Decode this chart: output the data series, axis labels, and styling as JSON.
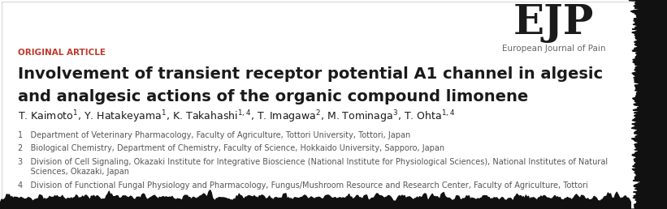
{
  "background_color": "#ffffff",
  "journal_logo": "EJP",
  "journal_name": "European Journal of Pain",
  "article_type": "ORIGINAL ARTICLE",
  "title_line1": "Involvement of transient receptor potential A1 channel in algesic",
  "title_line2": "and analgesic actions of the organic compound limonene",
  "authors_plain": "T. Kaimoto",
  "affil1": "1   Department of Veterinary Pharmacology, Faculty of Agriculture, Tottori University, Tottori, Japan",
  "affil2": "2   Biological Chemistry, Department of Chemistry, Faculty of Science, Hokkaido University, Sapporo, Japan",
  "affil3": "3   Division of Cell Signaling, Okazaki Institute for Integrative Bioscience (National Institute for Physiological Sciences), National Institutes of Natural",
  "affil3b": "     Sciences, Okazaki, Japan",
  "affil4": "4   Division of Functional Fungal Physiology and Pharmacology, Fungus/Mushroom Resource and Research Center, Faculty of Agriculture, Tottori",
  "title_color": "#1a1a1a",
  "article_type_color": "#c0392b",
  "affil_color": "#555555",
  "author_color": "#1a1a1a",
  "logo_color": "#1a1a1a",
  "journal_name_color": "#666666",
  "torn_color": "#111111",
  "logo_fontsize": 36,
  "journal_name_fontsize": 7.5,
  "article_type_fontsize": 7.5,
  "title_fontsize": 14,
  "author_fontsize": 9,
  "affil_fontsize": 7
}
